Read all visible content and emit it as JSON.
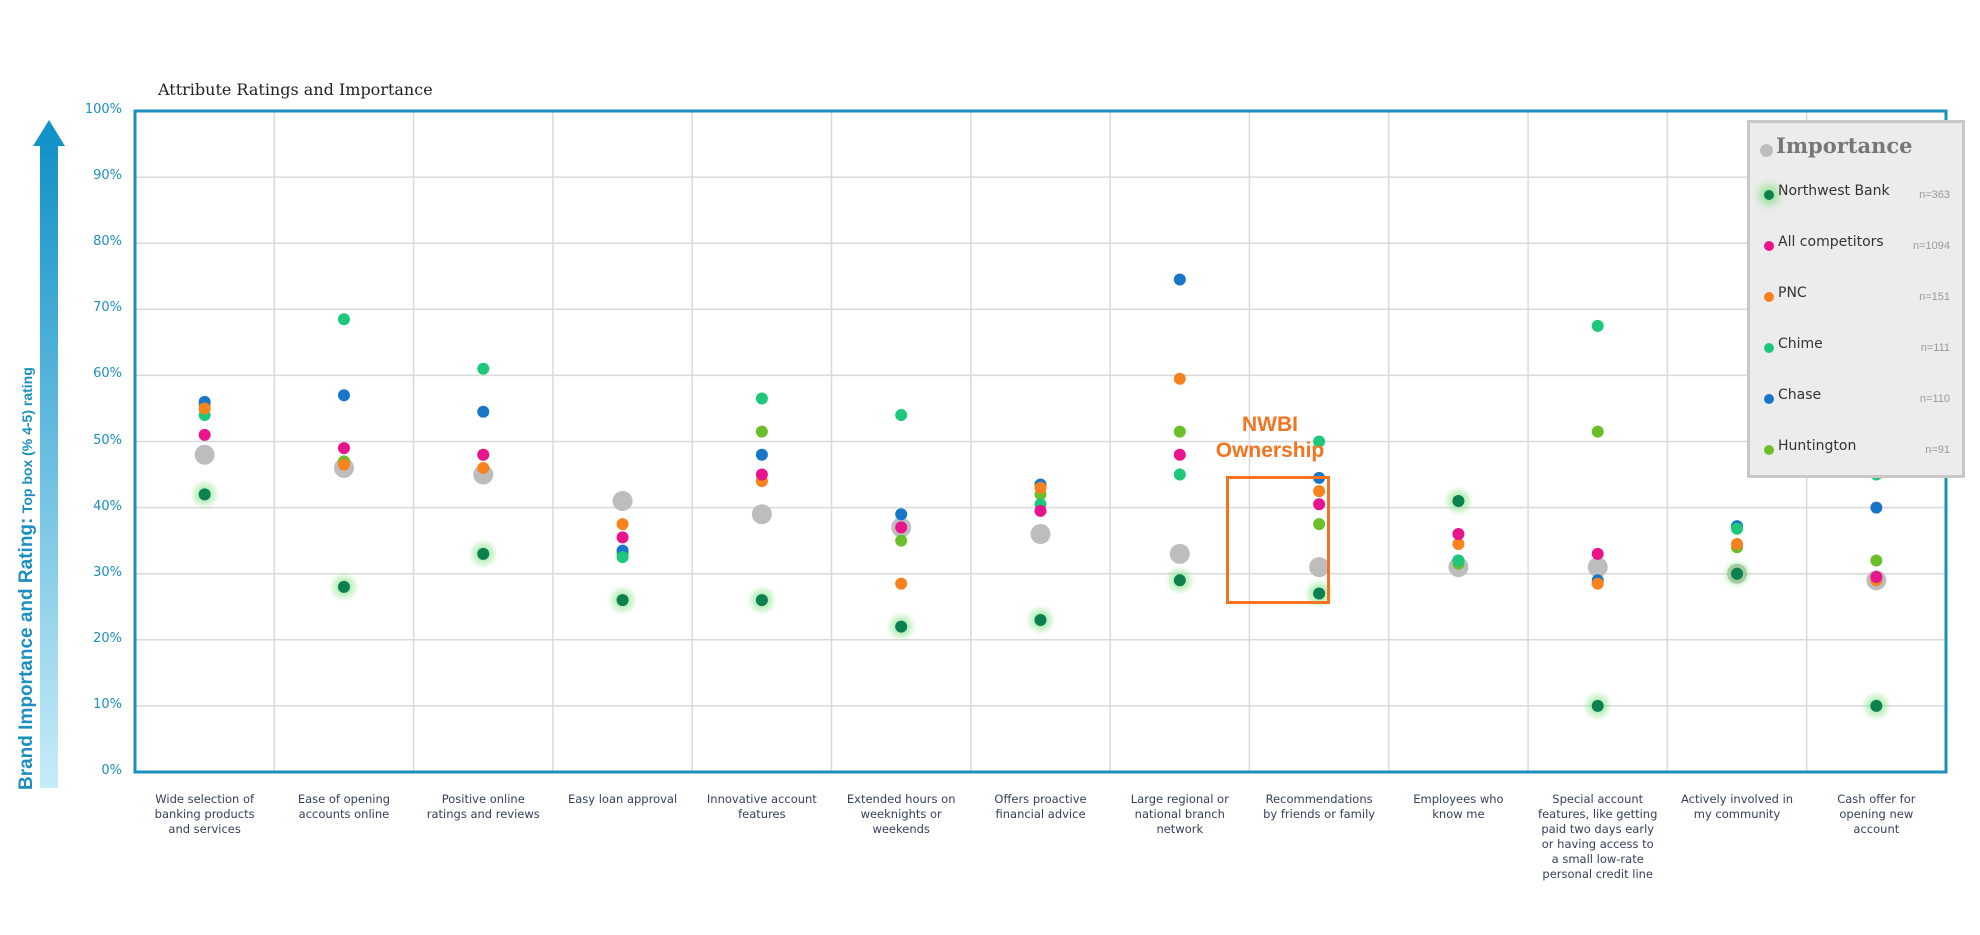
{
  "chart_data": {
    "type": "scatter",
    "title": "Attribute Ratings and Importance",
    "ylabel_main": "Brand Importance and Rating:",
    "ylabel_sub": "Top box (% 4-5) rating",
    "ylim": [
      0,
      100
    ],
    "yticks": [
      "0%",
      "10%",
      "20%",
      "30%",
      "40%",
      "50%",
      "60%",
      "70%",
      "80%",
      "90%",
      "100%"
    ],
    "grid": true,
    "legend_position": "right",
    "categories": [
      "Wide selection of banking products and services",
      "Ease of opening accounts online",
      "Positive online ratings and reviews",
      "Easy loan approval",
      "Innovative account features",
      "Extended hours on weeknights or weekends",
      "Offers proactive financial advice",
      "Large regional or national branch network",
      "Recommendations by friends or family",
      "Employees who know me",
      "Special account features, like getting paid two days early or having access to a small low-rate personal credit line",
      "Actively involved in my community",
      "Cash offer for opening new account"
    ],
    "importance": {
      "name": "Importance",
      "color": "#bdbdbd",
      "values": [
        48,
        46,
        45,
        41,
        39,
        37,
        36,
        33,
        31,
        31,
        31,
        30,
        29
      ]
    },
    "series": [
      {
        "name": "Huntington",
        "n": "n=91",
        "color": "#6abf2a",
        "values": [
          55.5,
          47,
          48,
          33,
          51.5,
          35,
          42,
          51.5,
          37.5,
          31.5,
          51.5,
          34,
          32
        ]
      },
      {
        "name": "Chase",
        "n": "n=110",
        "color": "#1876c9",
        "values": [
          56,
          57,
          54.5,
          33.5,
          48,
          39,
          43.5,
          74.5,
          44.5,
          32,
          29,
          37.2,
          40
        ]
      },
      {
        "name": "Chime",
        "n": "n=111",
        "color": "#1ec87a",
        "values": [
          54,
          68.5,
          61,
          32.5,
          56.5,
          54,
          40.5,
          45,
          50,
          32,
          67.5,
          36.8,
          45
        ]
      },
      {
        "name": "PNC",
        "n": "n=151",
        "color": "#f7821e",
        "values": [
          55,
          46.5,
          46,
          37.5,
          44,
          28.5,
          43,
          59.5,
          42.5,
          34.5,
          28.5,
          34.5,
          29
        ]
      },
      {
        "name": "All competitors",
        "n": "n=1094",
        "color": "#e8148c",
        "values": [
          51,
          49,
          48,
          35.5,
          45,
          37,
          39.5,
          48,
          40.5,
          36,
          33,
          30,
          29.5
        ]
      },
      {
        "name": "Northwest Bank",
        "n": "n=363",
        "color": "#0b8050",
        "values": [
          42,
          28,
          33,
          26,
          26,
          22,
          23,
          29,
          27,
          41,
          10,
          30,
          10
        ]
      }
    ],
    "legend_order": [
      "Northwest Bank",
      "All competitors",
      "PNC",
      "Chime",
      "Chase",
      "Huntington"
    ],
    "annotation": {
      "line1": "NWBI",
      "line2": "Ownership",
      "color": "#f47321",
      "category_index": 9,
      "range": [
        26,
        45
      ]
    }
  }
}
